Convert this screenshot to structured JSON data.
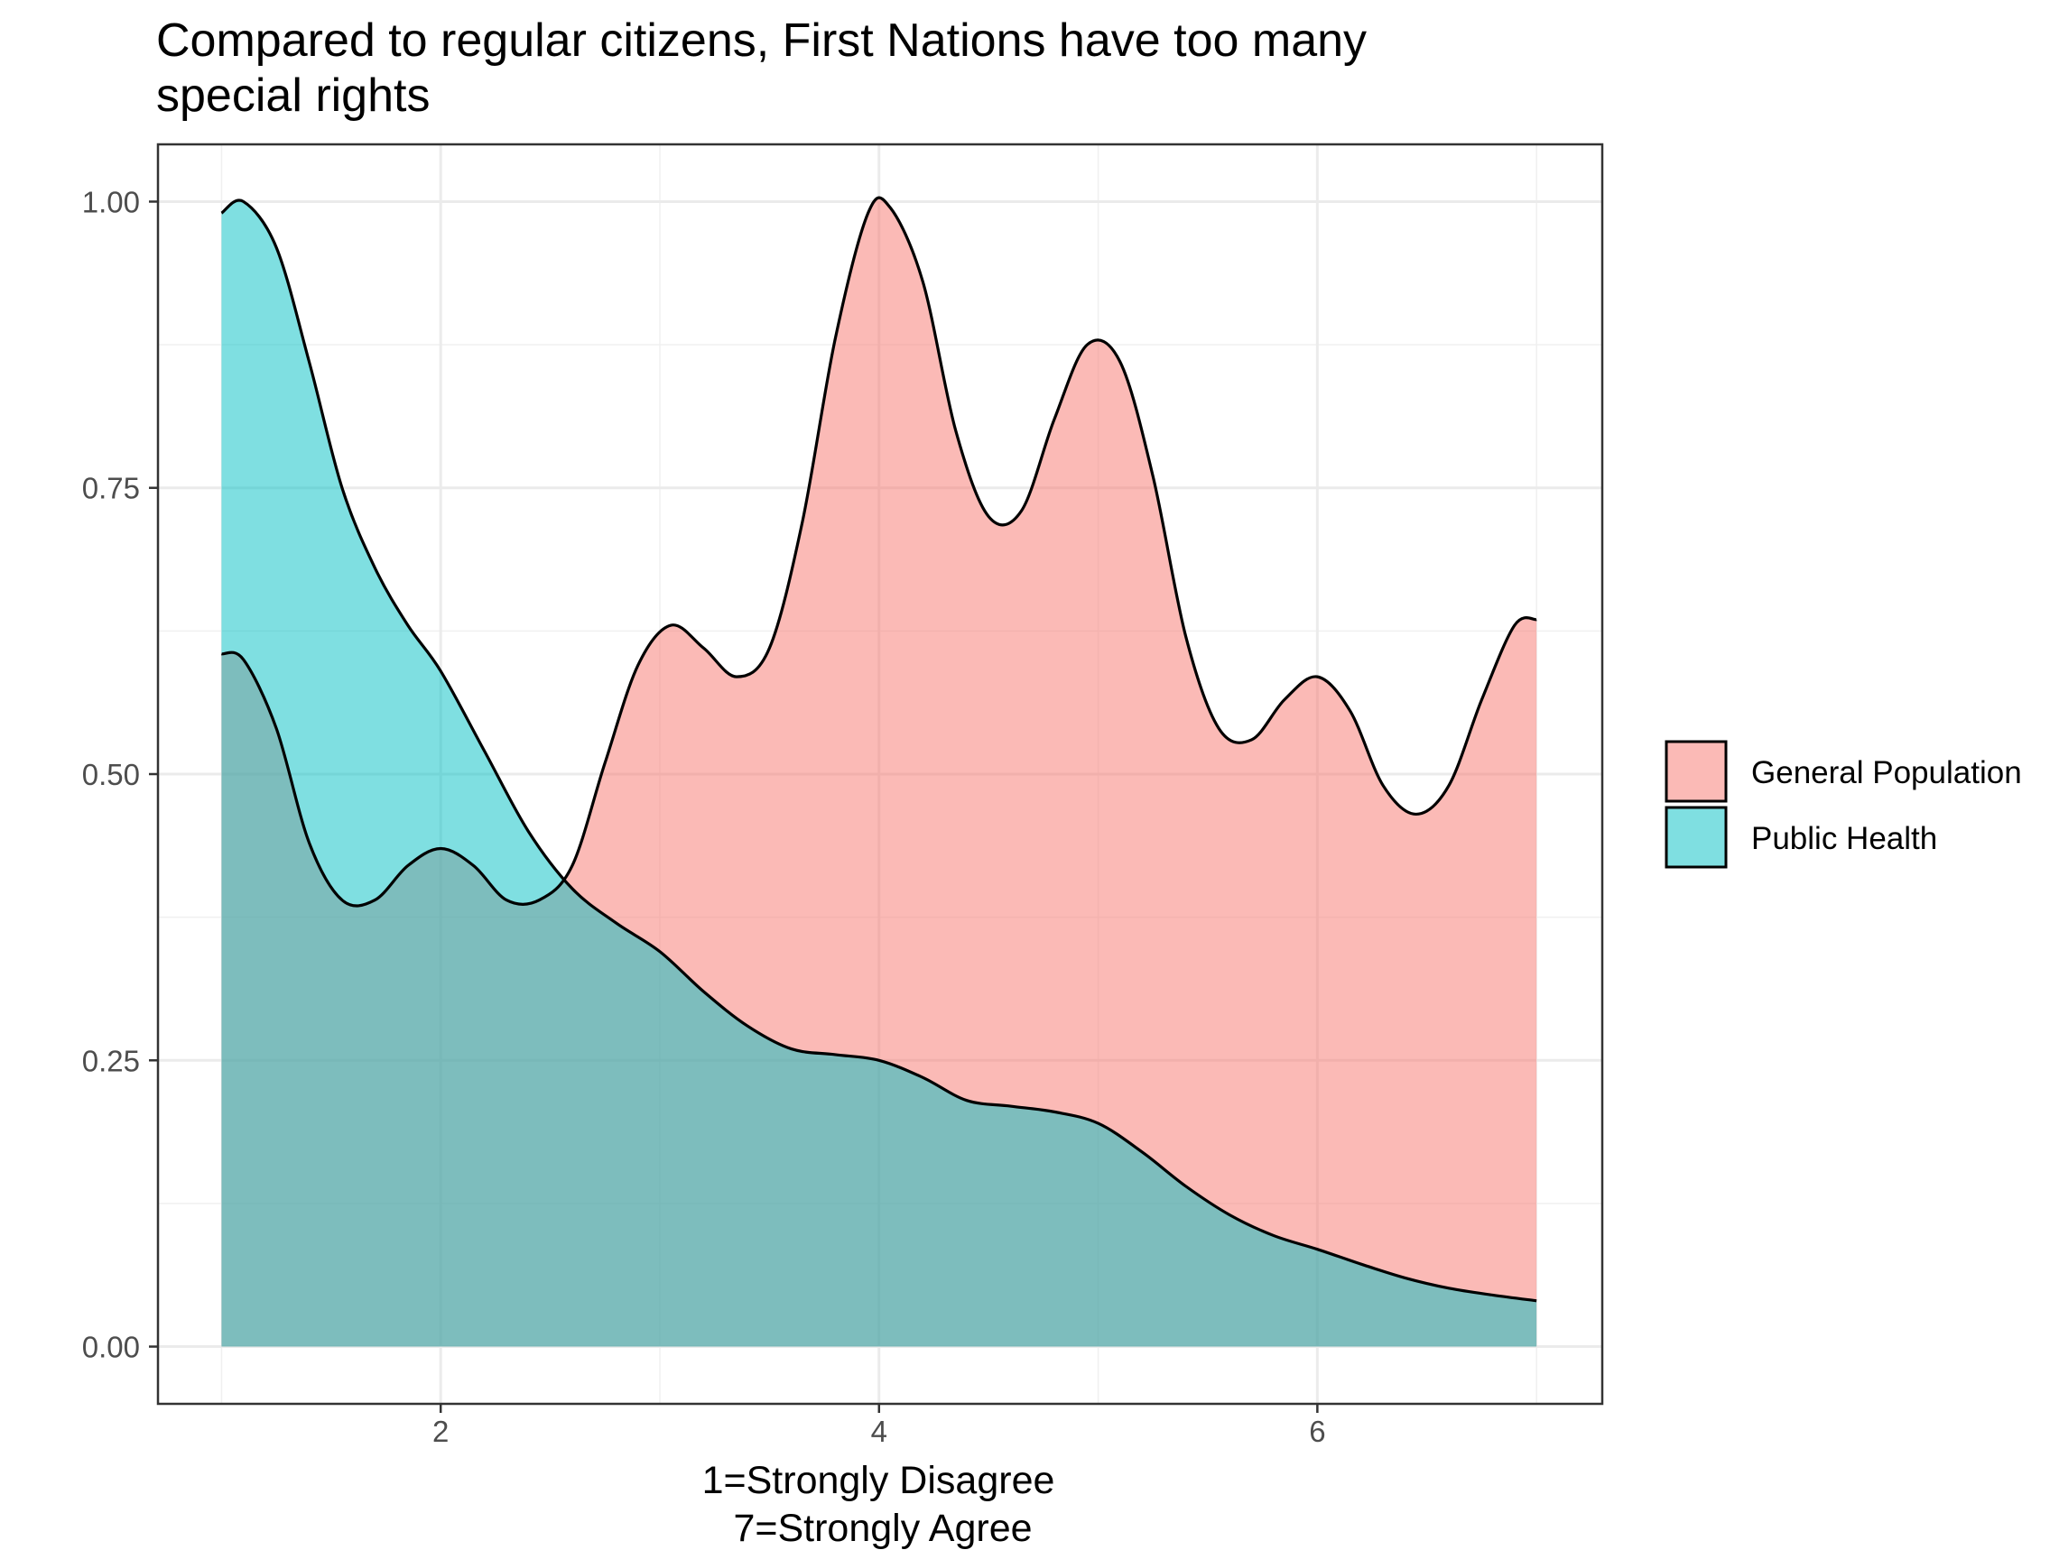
{
  "chart_data": {
    "type": "area",
    "title": "Compared to regular citizens, First Nations have too many special rights",
    "title_lines": [
      "Compared to regular citizens, First Nations have too many",
      "special rights"
    ],
    "xlabel": "",
    "xlabel_lines": [
      "1=Strongly Disagree",
      "7=Strongly Agree"
    ],
    "ylabel": "",
    "xlim": [
      0.71,
      7.3
    ],
    "ylim": [
      -0.05,
      1.05
    ],
    "x_ticks": [
      2,
      4,
      6
    ],
    "x_tick_labels": [
      "2",
      "4",
      "6"
    ],
    "y_ticks": [
      0,
      0.25,
      0.5,
      0.75,
      1
    ],
    "y_tick_labels": [
      "0.00",
      "0.25",
      "0.50",
      "0.75",
      "1.00"
    ],
    "grid": true,
    "legend_position": "right",
    "series": [
      {
        "name": "General Population",
        "color": "#F8766D",
        "fill_opacity": 0.5,
        "points": [
          [
            1.0,
            0.605
          ],
          [
            1.1,
            0.6
          ],
          [
            1.25,
            0.54
          ],
          [
            1.4,
            0.44
          ],
          [
            1.55,
            0.39
          ],
          [
            1.7,
            0.39
          ],
          [
            1.85,
            0.42
          ],
          [
            2.0,
            0.435
          ],
          [
            2.15,
            0.42
          ],
          [
            2.3,
            0.39
          ],
          [
            2.45,
            0.39
          ],
          [
            2.6,
            0.42
          ],
          [
            2.75,
            0.51
          ],
          [
            2.9,
            0.595
          ],
          [
            3.05,
            0.63
          ],
          [
            3.2,
            0.61
          ],
          [
            3.35,
            0.585
          ],
          [
            3.5,
            0.61
          ],
          [
            3.65,
            0.72
          ],
          [
            3.8,
            0.88
          ],
          [
            3.95,
            0.99
          ],
          [
            4.05,
            0.995
          ],
          [
            4.2,
            0.93
          ],
          [
            4.35,
            0.8
          ],
          [
            4.5,
            0.725
          ],
          [
            4.65,
            0.73
          ],
          [
            4.8,
            0.81
          ],
          [
            4.95,
            0.875
          ],
          [
            5.1,
            0.86
          ],
          [
            5.25,
            0.76
          ],
          [
            5.4,
            0.62
          ],
          [
            5.55,
            0.54
          ],
          [
            5.7,
            0.53
          ],
          [
            5.85,
            0.565
          ],
          [
            6.0,
            0.585
          ],
          [
            6.15,
            0.555
          ],
          [
            6.3,
            0.49
          ],
          [
            6.45,
            0.465
          ],
          [
            6.6,
            0.49
          ],
          [
            6.75,
            0.565
          ],
          [
            6.9,
            0.63
          ],
          [
            7.0,
            0.635
          ]
        ]
      },
      {
        "name": "Public Health",
        "color": "#00BFC4",
        "fill_opacity": 0.5,
        "points": [
          [
            1.0,
            0.99
          ],
          [
            1.1,
            1.0
          ],
          [
            1.25,
            0.96
          ],
          [
            1.4,
            0.86
          ],
          [
            1.55,
            0.75
          ],
          [
            1.7,
            0.68
          ],
          [
            1.85,
            0.63
          ],
          [
            2.0,
            0.59
          ],
          [
            2.2,
            0.52
          ],
          [
            2.4,
            0.45
          ],
          [
            2.6,
            0.4
          ],
          [
            2.8,
            0.37
          ],
          [
            3.0,
            0.345
          ],
          [
            3.2,
            0.31
          ],
          [
            3.4,
            0.28
          ],
          [
            3.6,
            0.26
          ],
          [
            3.8,
            0.255
          ],
          [
            4.0,
            0.25
          ],
          [
            4.2,
            0.235
          ],
          [
            4.4,
            0.215
          ],
          [
            4.6,
            0.21
          ],
          [
            4.8,
            0.205
          ],
          [
            5.0,
            0.195
          ],
          [
            5.2,
            0.17
          ],
          [
            5.4,
            0.14
          ],
          [
            5.6,
            0.115
          ],
          [
            5.8,
            0.097
          ],
          [
            6.0,
            0.085
          ],
          [
            6.2,
            0.072
          ],
          [
            6.4,
            0.06
          ],
          [
            6.6,
            0.051
          ],
          [
            6.8,
            0.045
          ],
          [
            7.0,
            0.04
          ]
        ]
      }
    ]
  }
}
